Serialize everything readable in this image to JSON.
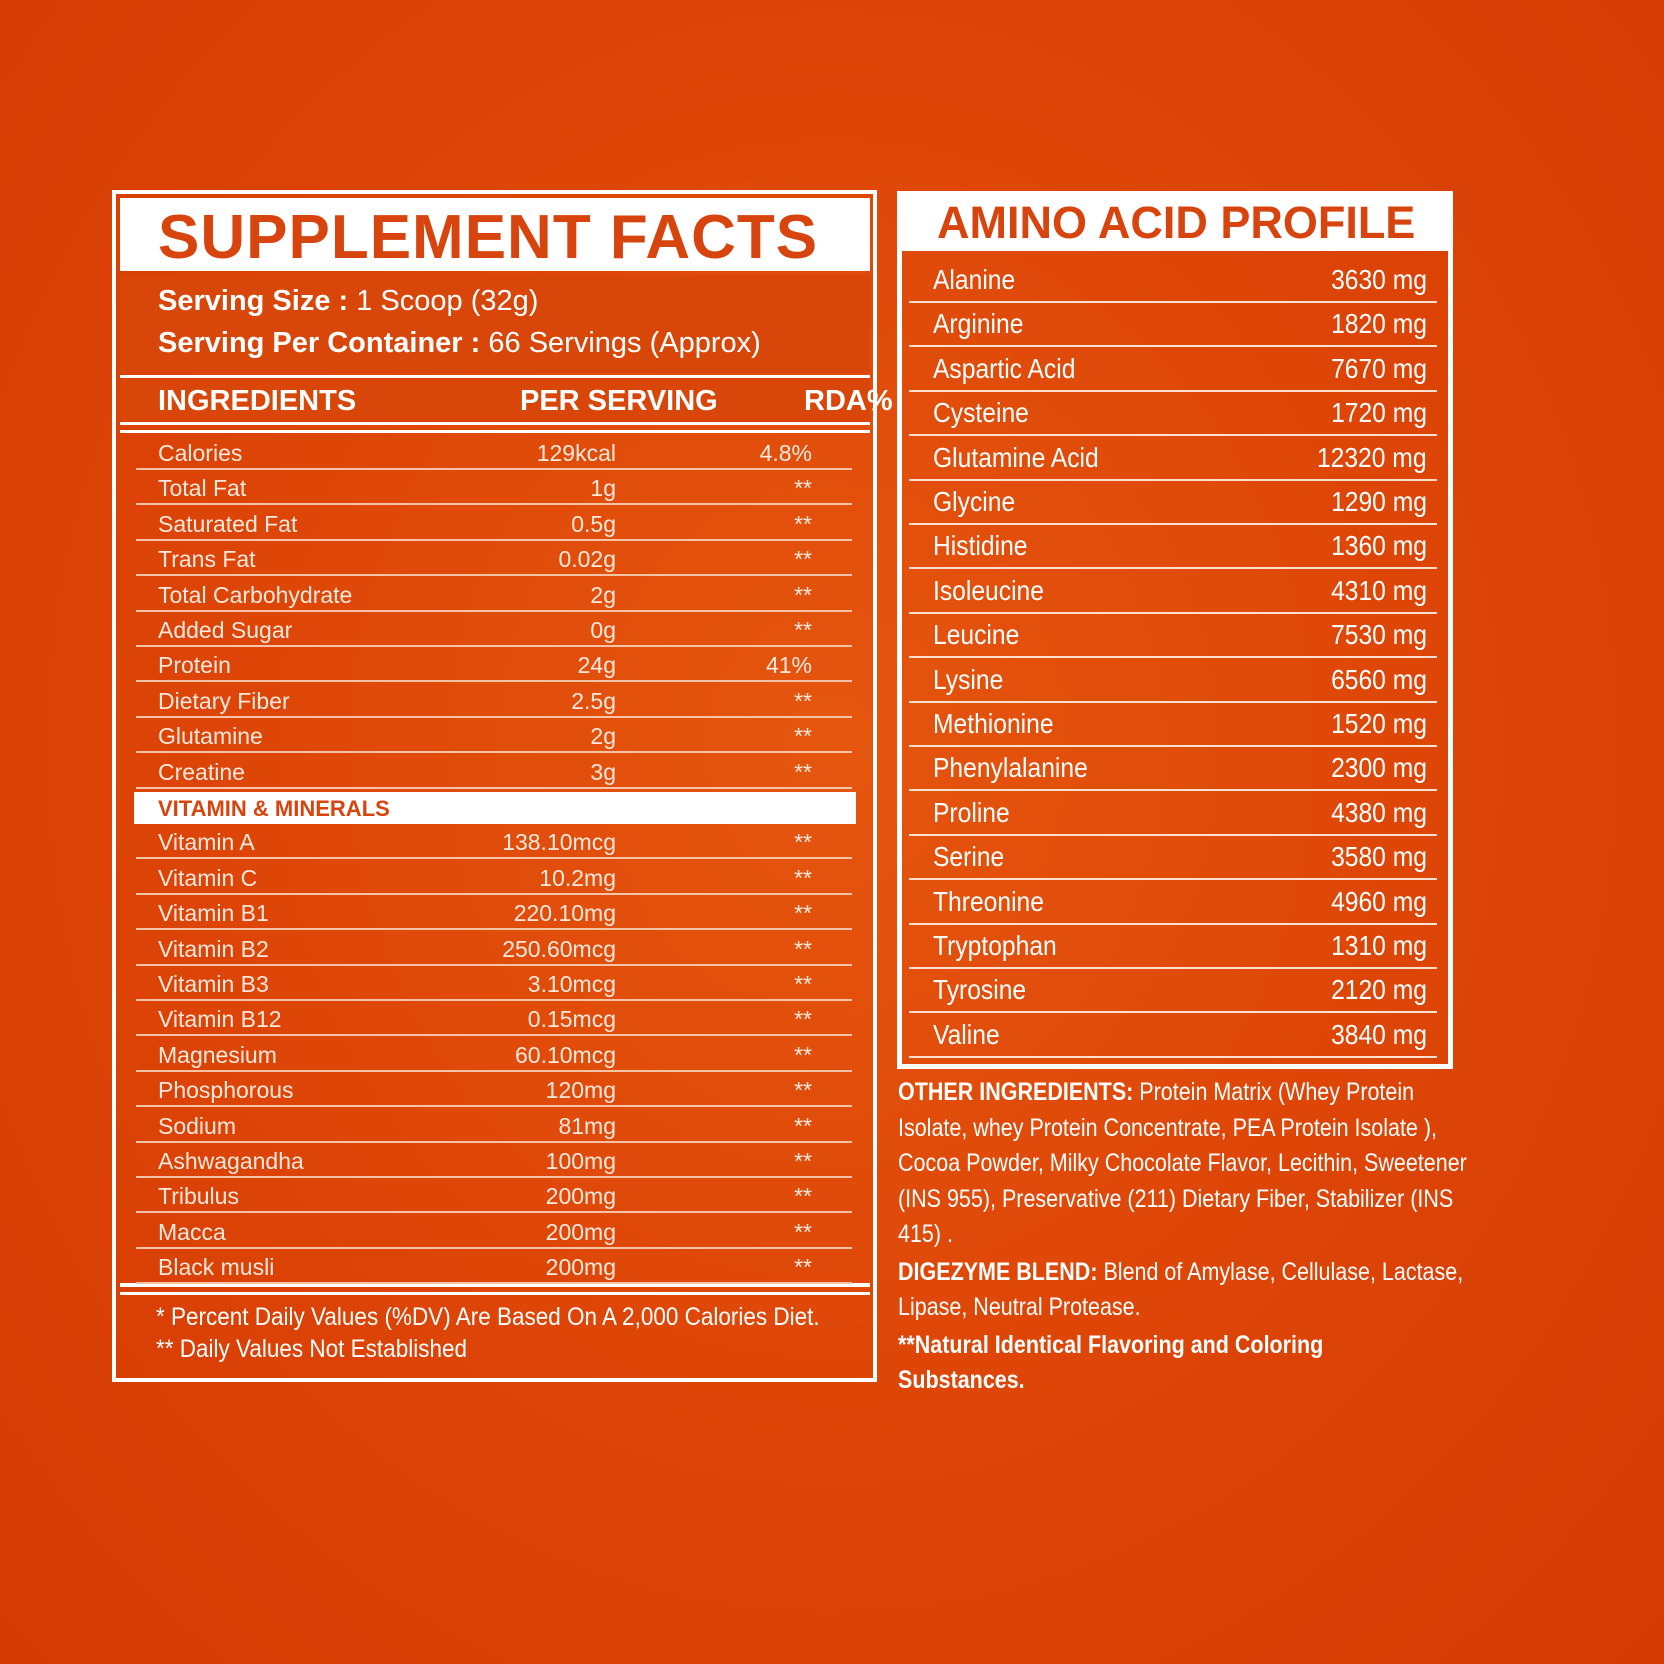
{
  "supplement_facts": {
    "title": "SUPPLEMENT FACTS",
    "serving_size_label": "Serving Size :",
    "serving_size_value": "1 Scoop (32g)",
    "servings_label": "Serving Per Container :",
    "servings_value": "66 Servings (Approx)",
    "columns": {
      "ingredients": "INGREDIENTS",
      "per_serving": "PER SERVING",
      "rda": "RDA%"
    },
    "rows": [
      [
        "Calories",
        "129kcal",
        "4.8%"
      ],
      [
        "Total Fat",
        "1g",
        "**"
      ],
      [
        "Saturated Fat",
        "0.5g",
        "**"
      ],
      [
        "Trans Fat",
        "0.02g",
        "**"
      ],
      [
        "Total Carbohydrate",
        "2g",
        "**"
      ],
      [
        "Added Sugar",
        "0g",
        "**"
      ],
      [
        "Protein",
        "24g",
        "41%"
      ],
      [
        "Dietary Fiber",
        "2.5g",
        "**"
      ],
      [
        "Glutamine",
        "2g",
        "**"
      ],
      [
        "Creatine",
        "3g",
        "**"
      ]
    ],
    "vitamin_header": "VITAMIN & MINERALS",
    "vitamin_rows": [
      [
        "Vitamin A",
        "138.10mcg",
        "**"
      ],
      [
        "Vitamin C",
        "10.2mg",
        "**"
      ],
      [
        "Vitamin B1",
        "220.10mg",
        "**"
      ],
      [
        "Vitamin B2",
        "250.60mcg",
        "**"
      ],
      [
        "Vitamin B3",
        "3.10mcg",
        "**"
      ],
      [
        "Vitamin B12",
        "0.15mcg",
        "**"
      ],
      [
        "Magnesium",
        "60.10mcg",
        "**"
      ],
      [
        "Phosphorous",
        "120mg",
        "**"
      ],
      [
        "Sodium",
        "81mg",
        "**"
      ],
      [
        "Ashwagandha",
        "100mg",
        "**"
      ],
      [
        "Tribulus",
        "200mg",
        "**"
      ],
      [
        "Macca",
        "200mg",
        "**"
      ],
      [
        "Black  musli",
        "200mg",
        "**"
      ]
    ],
    "footnote_1": "* Percent Daily Values (%DV) Are Based On A 2,000 Calories Diet.",
    "footnote_2": "** Daily Values Not Established"
  },
  "amino_acid_profile": {
    "title": "AMINO ACID PROFILE",
    "rows": [
      [
        "Alanine",
        "3630 mg"
      ],
      [
        "Arginine",
        "1820 mg"
      ],
      [
        "Aspartic Acid",
        "7670 mg"
      ],
      [
        "Cysteine",
        "1720 mg"
      ],
      [
        "Glutamine Acid",
        "12320 mg"
      ],
      [
        "Glycine",
        "1290 mg"
      ],
      [
        "Histidine",
        "1360 mg"
      ],
      [
        "Isoleucine",
        "4310 mg"
      ],
      [
        "Leucine",
        "7530 mg"
      ],
      [
        "Lysine",
        "6560 mg"
      ],
      [
        "Methionine",
        "1520 mg"
      ],
      [
        "Phenylalanine",
        "2300 mg"
      ],
      [
        "Proline",
        "4380 mg"
      ],
      [
        "Serine",
        "3580 mg"
      ],
      [
        "Threonine",
        "4960 mg"
      ],
      [
        "Tryptophan",
        "1310 mg"
      ],
      [
        "Tyrosine",
        "2120 mg"
      ],
      [
        "Valine",
        "3840 mg"
      ]
    ]
  },
  "other_ingredients": {
    "label": "OTHER INGREDIENTS:",
    "text": " Protein Matrix (Whey Protein Isolate, whey Protein Concentrate, PEA Protein Isolate ), Cocoa Powder, Milky Chocolate Flavor, Lecithin, Sweetener (INS 955), Preservative (211) Dietary Fiber, Stabilizer (INS 415) ."
  },
  "digezyme": {
    "label": "DIGEZYME BLEND:",
    "text": " Blend of  Amylase, Cellulase, Lactase, Lipase, Neutral Protease."
  },
  "flavor_note": "**Natural Identical Flavoring and Coloring Substances."
}
